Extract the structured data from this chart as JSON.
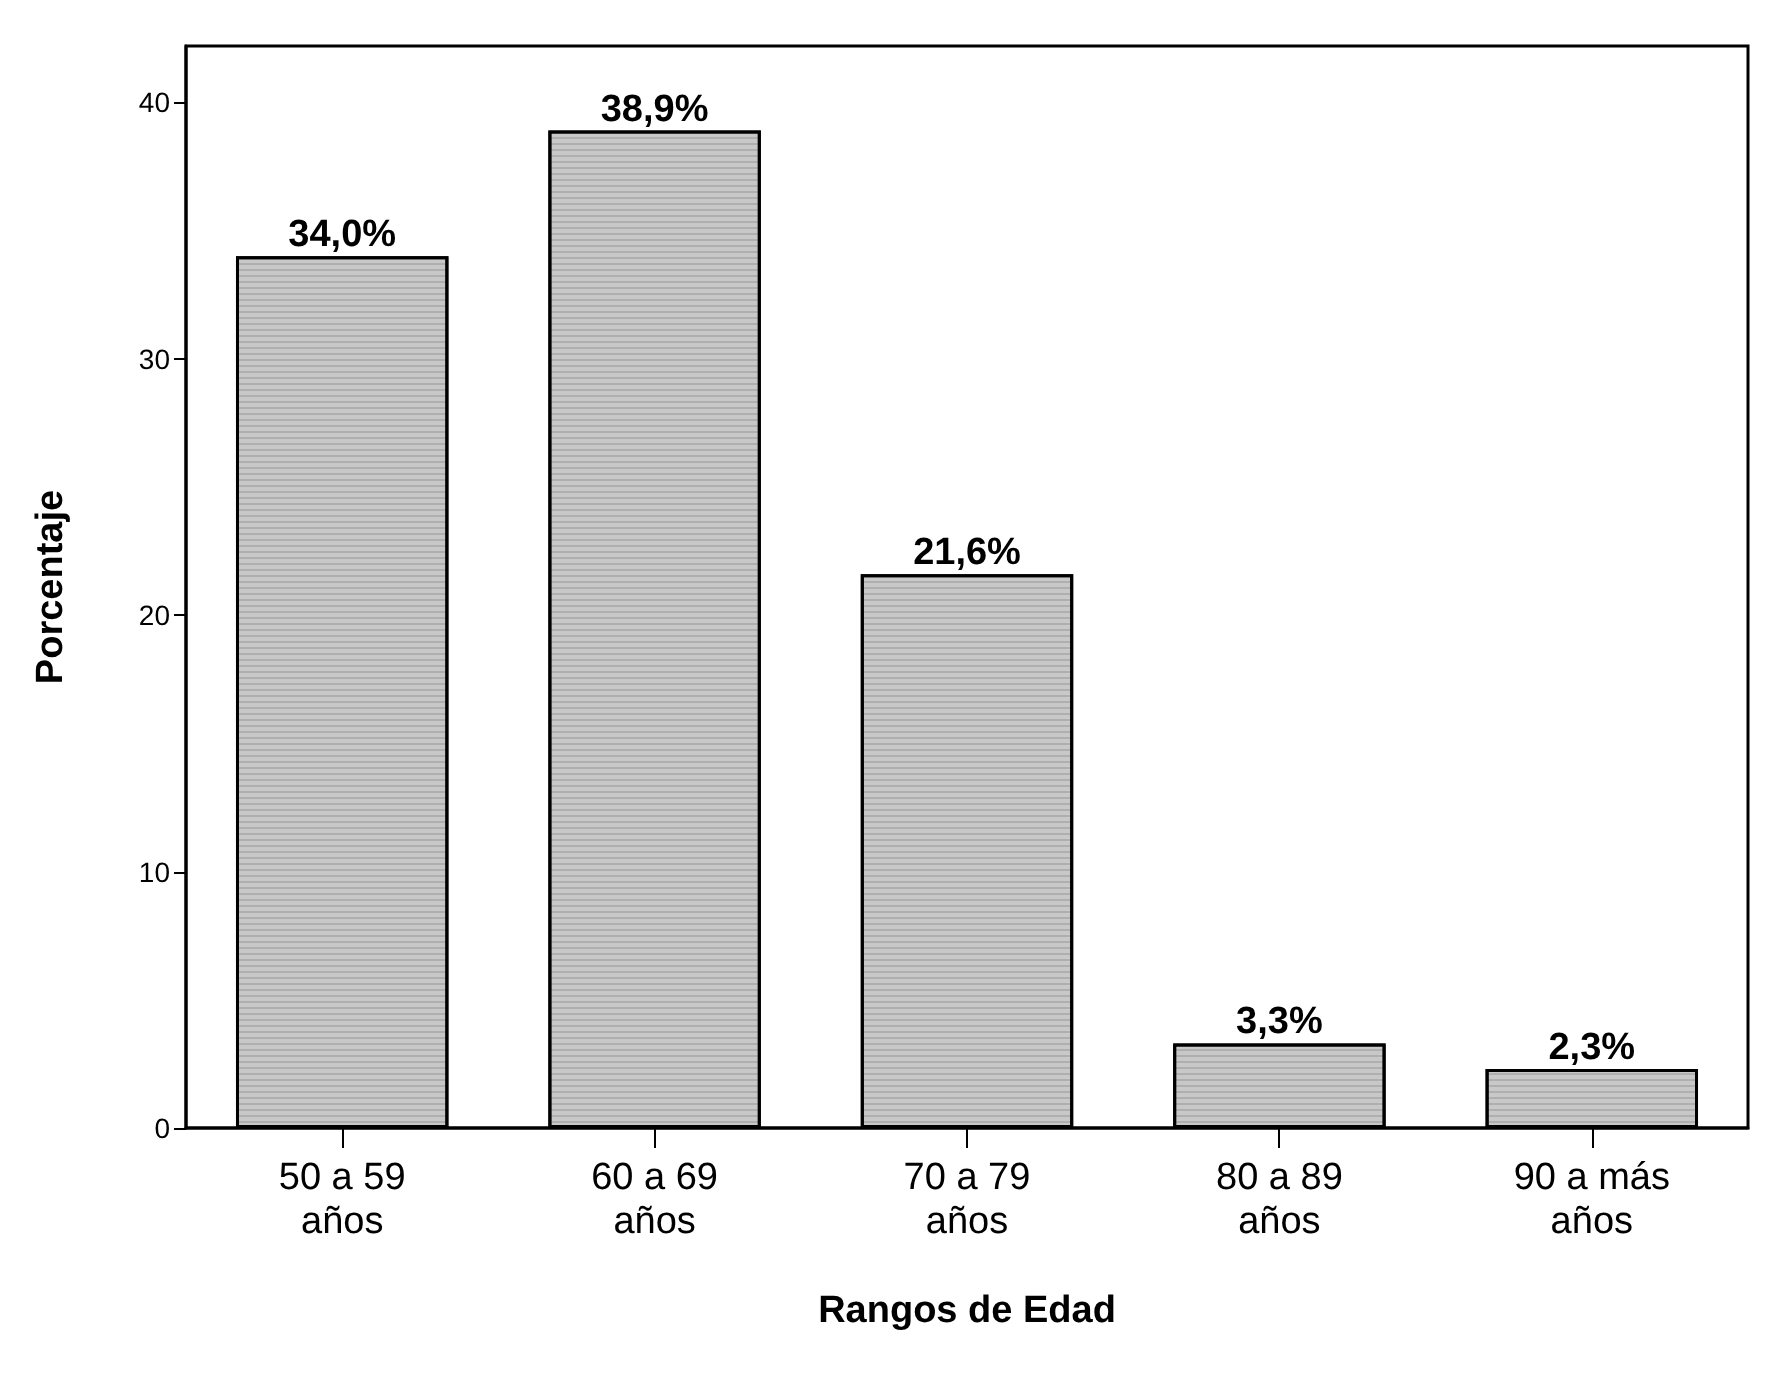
{
  "chart_data": {
    "type": "bar",
    "xlabel": "Rangos de Edad",
    "ylabel": "Porcentaje",
    "categories": [
      "50 a 59\naños",
      "60 a 69\naños",
      "70 a 79\naños",
      "80 a 89\naños",
      "90 a más\naños"
    ],
    "values": [
      34.0,
      38.9,
      21.6,
      3.3,
      2.3
    ],
    "value_labels": [
      "34,0%",
      "38,9%",
      "21,6%",
      "3,3%",
      "2,3%"
    ],
    "color": "#c8c8c8",
    "ylim": [
      0,
      42.2
    ],
    "yticks": [
      0,
      10,
      20,
      30,
      40
    ],
    "grid": false
  }
}
